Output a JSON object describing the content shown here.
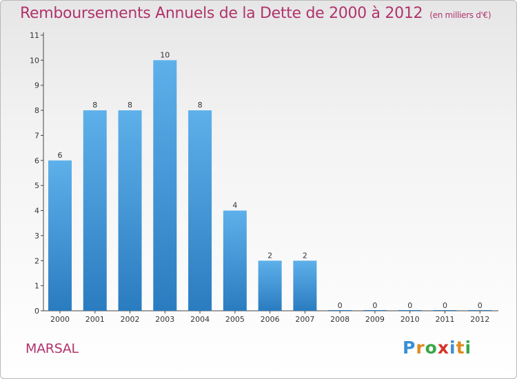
{
  "title": "Remboursements Annuels de la Dette de 2000 à 2012",
  "unit_note": "(en milliers d'€)",
  "commune": "MARSAL",
  "brand": {
    "name": "Proxiti",
    "letters": [
      {
        "ch": "P",
        "color": "#3a8fd4"
      },
      {
        "ch": "r",
        "color": "#e08a1e"
      },
      {
        "ch": "o",
        "color": "#3aa64a"
      },
      {
        "ch": "x",
        "color": "#d4342a"
      },
      {
        "ch": "i",
        "color": "#3a8fd4"
      },
      {
        "ch": "t",
        "color": "#e08a1e"
      },
      {
        "ch": "i",
        "color": "#3aa64a"
      }
    ]
  },
  "colors": {
    "accent": "#b0336c",
    "bar_top": "#5eb0ea",
    "bar_bottom": "#2a7cc0",
    "axis": "#444444"
  },
  "chart_data": {
    "type": "bar",
    "title": "Remboursements Annuels de la Dette de 2000 à 2012",
    "ylabel": "",
    "xlabel": "",
    "categories": [
      "2000",
      "2001",
      "2002",
      "2003",
      "2004",
      "2005",
      "2006",
      "2007",
      "2008",
      "2009",
      "2010",
      "2011",
      "2012"
    ],
    "values": [
      6,
      8,
      8,
      10,
      8,
      4,
      2,
      2,
      0,
      0,
      0,
      0,
      0
    ],
    "data_labels": [
      "6",
      "8",
      "8",
      "10",
      "8",
      "4",
      "2",
      "2",
      "0",
      "0",
      "0",
      "0",
      "0"
    ],
    "ylim": [
      0,
      11
    ],
    "yticks": [
      "0",
      "1",
      "2",
      "3",
      "4",
      "5",
      "6",
      "7",
      "8",
      "9",
      "10",
      "11"
    ],
    "grid": false
  }
}
